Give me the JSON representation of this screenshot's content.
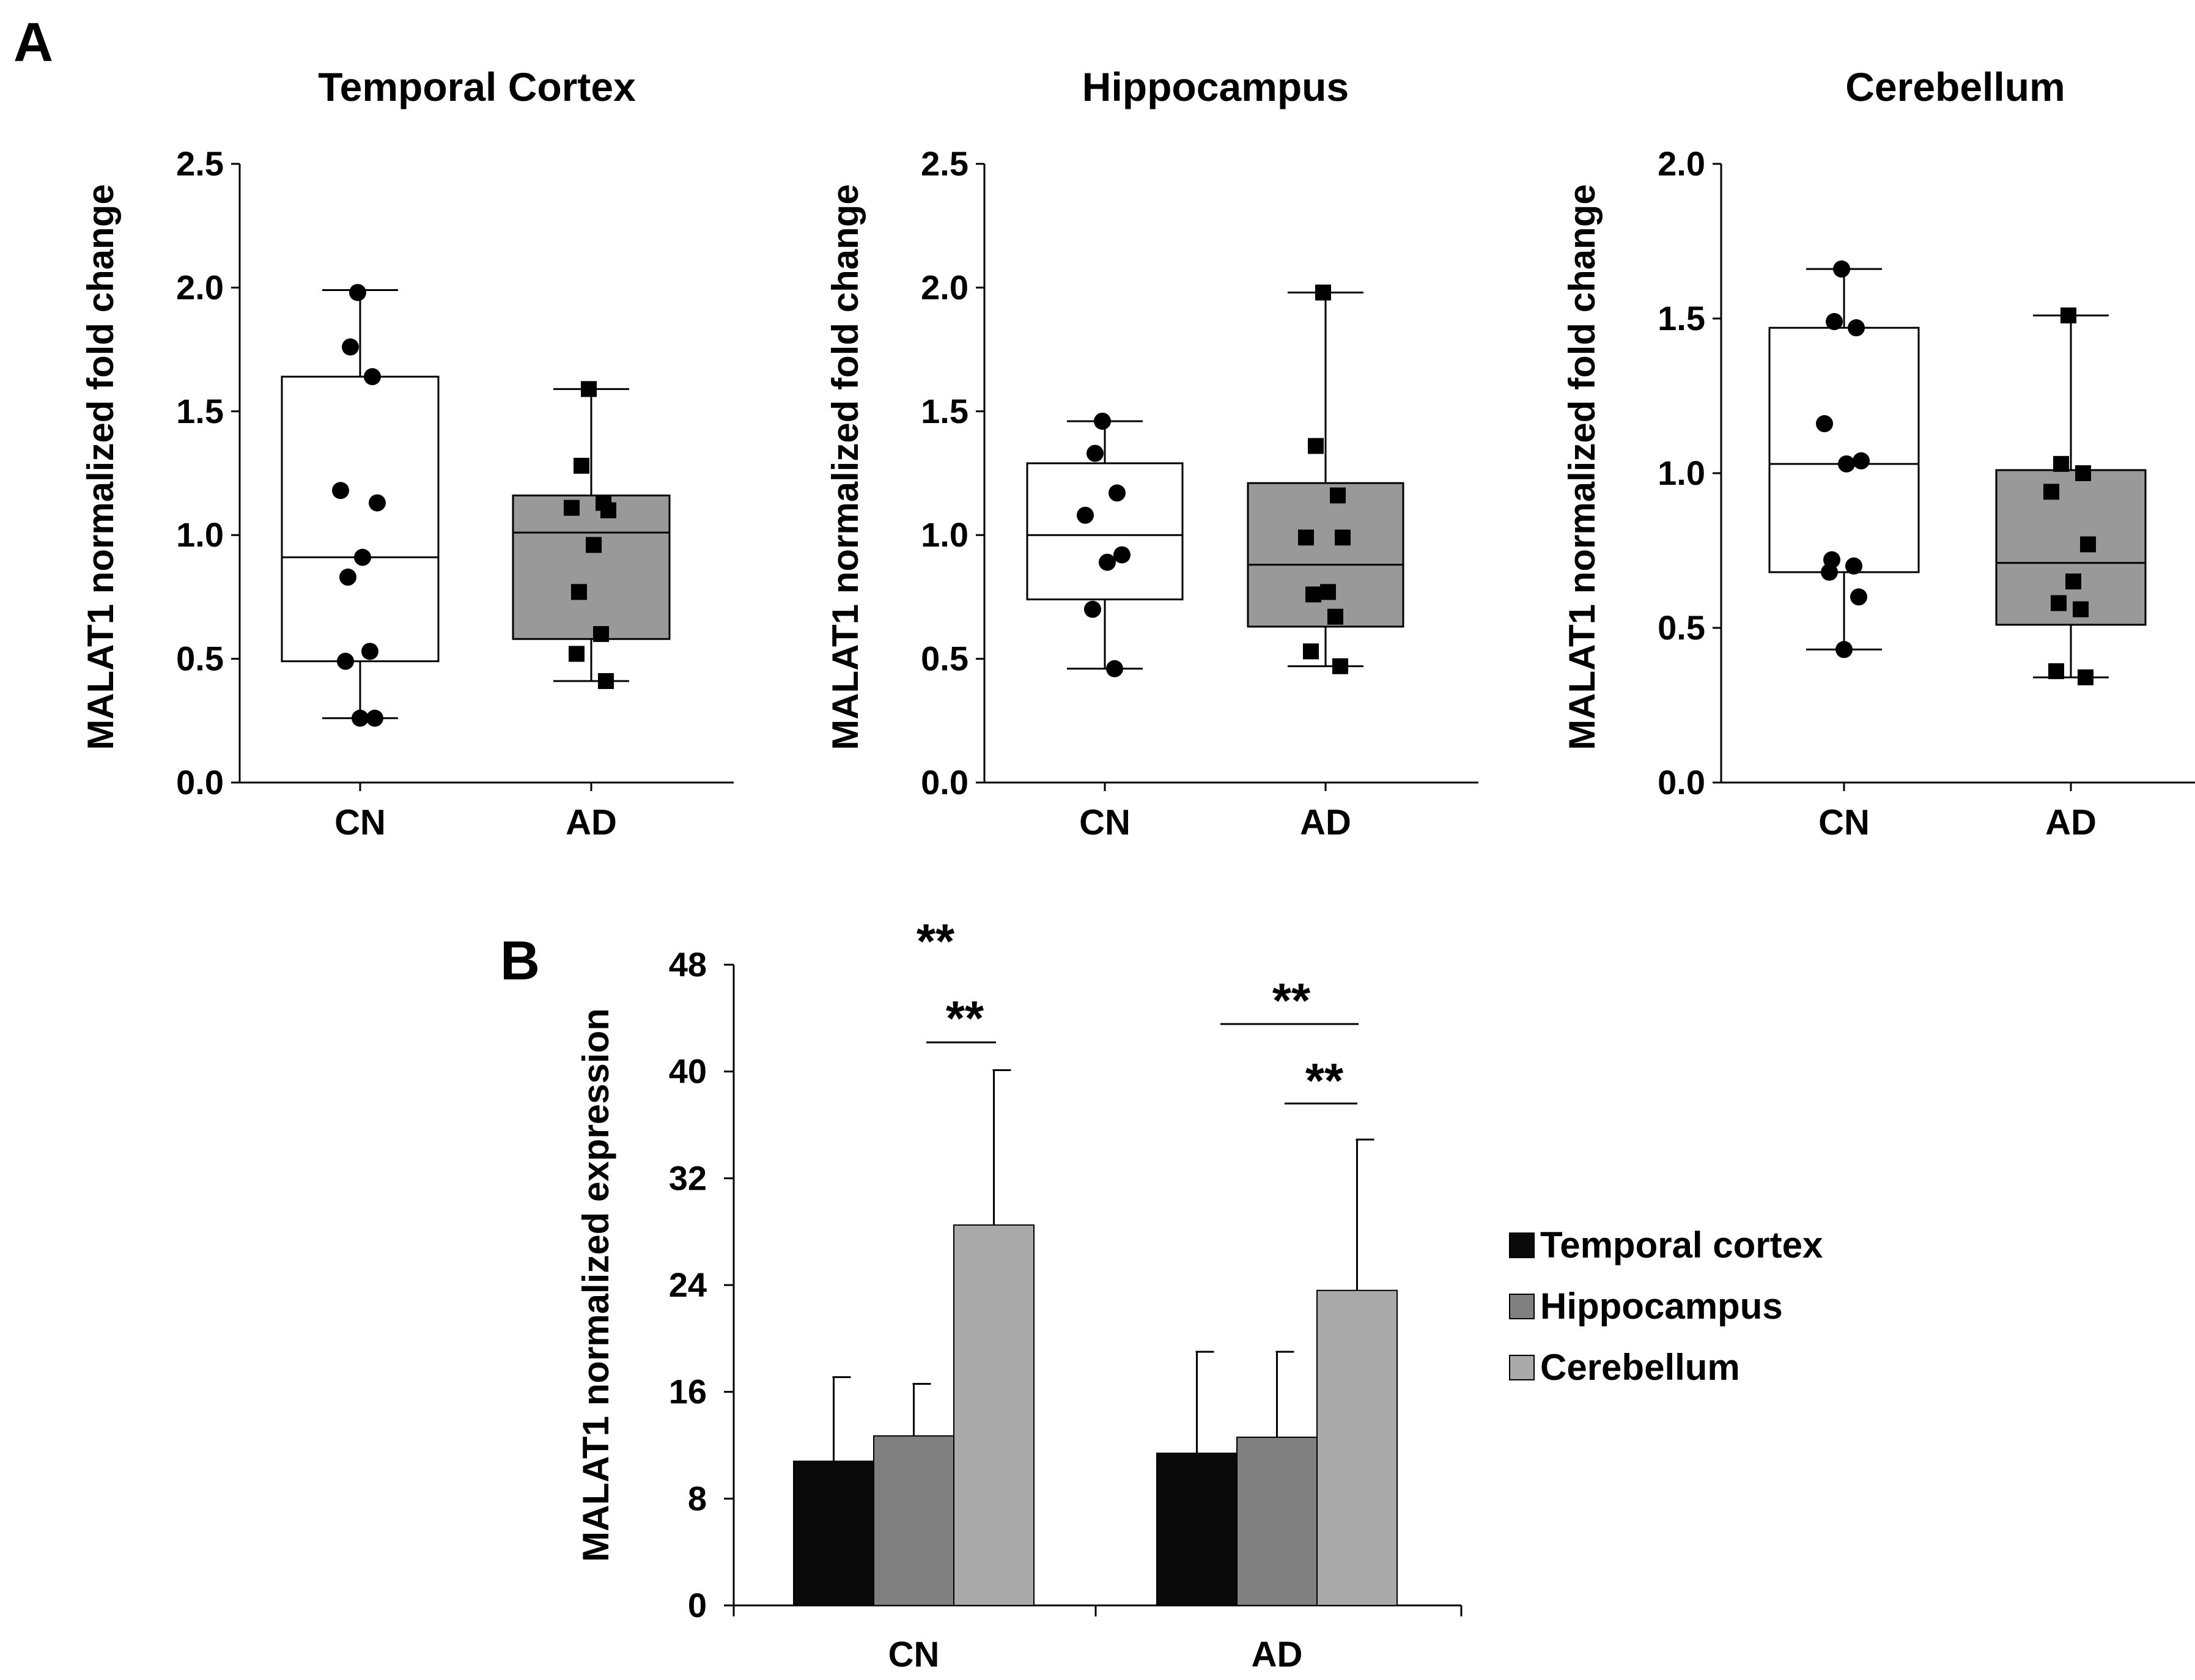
{
  "panel_labels": {
    "a": "A",
    "b": "B"
  },
  "chart_data": [
    {
      "type": "box",
      "panel": "A",
      "title": "Temporal Cortex",
      "ylabel": "MALAT1 normalized fold change",
      "ylim": [
        0,
        2.5
      ],
      "yticks": [
        "0.0",
        "0.5",
        "1.0",
        "1.5",
        "2.0",
        "2.5"
      ],
      "categories": [
        "CN",
        "AD"
      ],
      "groups": [
        {
          "name": "CN",
          "fill": "#ffffff",
          "marker": "circle",
          "whisker_low": 0.26,
          "q1": 0.49,
          "median": 0.91,
          "q3": 1.64,
          "whisker_high": 1.99,
          "points": [
            1.98,
            1.76,
            1.64,
            1.18,
            1.13,
            0.91,
            0.83,
            0.53,
            0.49,
            0.26,
            0.26
          ]
        },
        {
          "name": "AD",
          "fill": "#999999",
          "marker": "square",
          "whisker_low": 0.41,
          "q1": 0.58,
          "median": 1.01,
          "q3": 1.16,
          "whisker_high": 1.59,
          "points": [
            1.59,
            1.28,
            1.13,
            1.11,
            1.1,
            0.96,
            0.77,
            0.6,
            0.52,
            0.41
          ]
        }
      ]
    },
    {
      "type": "box",
      "panel": "A",
      "title": "Hippocampus",
      "ylabel": "MALAT1 normalized fold change",
      "ylim": [
        0,
        2.5
      ],
      "yticks": [
        "0.0",
        "0.5",
        "1.0",
        "1.5",
        "2.0",
        "2.5"
      ],
      "categories": [
        "CN",
        "AD"
      ],
      "groups": [
        {
          "name": "CN",
          "fill": "#ffffff",
          "marker": "circle",
          "whisker_low": 0.46,
          "q1": 0.74,
          "median": 1.0,
          "q3": 1.29,
          "whisker_high": 1.46,
          "points": [
            1.46,
            1.33,
            1.17,
            1.08,
            0.92,
            0.89,
            0.7,
            0.46
          ]
        },
        {
          "name": "AD",
          "fill": "#999999",
          "marker": "square",
          "whisker_low": 0.47,
          "q1": 0.63,
          "median": 0.88,
          "q3": 1.21,
          "whisker_high": 1.98,
          "points": [
            1.98,
            1.36,
            1.16,
            0.99,
            0.99,
            0.77,
            0.76,
            0.67,
            0.53,
            0.47
          ]
        }
      ]
    },
    {
      "type": "box",
      "panel": "A",
      "title": "Cerebellum",
      "ylabel": "MALAT1 normalized fold change",
      "ylim": [
        0,
        2.0
      ],
      "yticks": [
        "0.0",
        "0.5",
        "1.0",
        "1.5",
        "2.0"
      ],
      "categories": [
        "CN",
        "AD"
      ],
      "groups": [
        {
          "name": "CN",
          "fill": "#ffffff",
          "marker": "circle",
          "whisker_low": 0.43,
          "q1": 0.68,
          "median": 1.03,
          "q3": 1.47,
          "whisker_high": 1.66,
          "points": [
            1.66,
            1.49,
            1.47,
            1.16,
            1.04,
            1.03,
            0.72,
            0.7,
            0.68,
            0.6,
            0.43
          ]
        },
        {
          "name": "AD",
          "fill": "#999999",
          "marker": "square",
          "whisker_low": 0.34,
          "q1": 0.51,
          "median": 0.71,
          "q3": 1.01,
          "whisker_high": 1.51,
          "points": [
            1.51,
            1.03,
            1.0,
            0.94,
            0.77,
            0.65,
            0.58,
            0.56,
            0.36,
            0.34
          ]
        }
      ]
    },
    {
      "type": "bar",
      "panel": "B",
      "ylabel": "MALAT1 normalized expression",
      "ylim": [
        0,
        48
      ],
      "yticks": [
        "0",
        "8",
        "16",
        "24",
        "32",
        "40",
        "48"
      ],
      "categories": [
        "CN",
        "AD"
      ],
      "series": [
        {
          "name": "Temporal cortex",
          "color": "#0a0a0a",
          "values": [
            10.8,
            11.4
          ],
          "errors": [
            6.3,
            7.6
          ]
        },
        {
          "name": "Hippocampus",
          "color": "#808080",
          "values": [
            12.7,
            12.6
          ],
          "errors": [
            3.9,
            6.4
          ]
        },
        {
          "name": "Cerebellum",
          "color": "#a9a9a9",
          "values": [
            28.5,
            23.6
          ],
          "errors": [
            11.6,
            11.3
          ]
        }
      ],
      "significance": [
        {
          "label": "**",
          "category": "CN",
          "bracket": "none"
        },
        {
          "label": "**",
          "category": "CN",
          "bracket": "Hippocampus-Cerebellum"
        },
        {
          "label": "**",
          "category": "AD",
          "bracket": "Temporal cortex-Cerebellum"
        },
        {
          "label": "**",
          "category": "AD",
          "bracket": "Hippocampus-Cerebellum"
        }
      ]
    }
  ]
}
